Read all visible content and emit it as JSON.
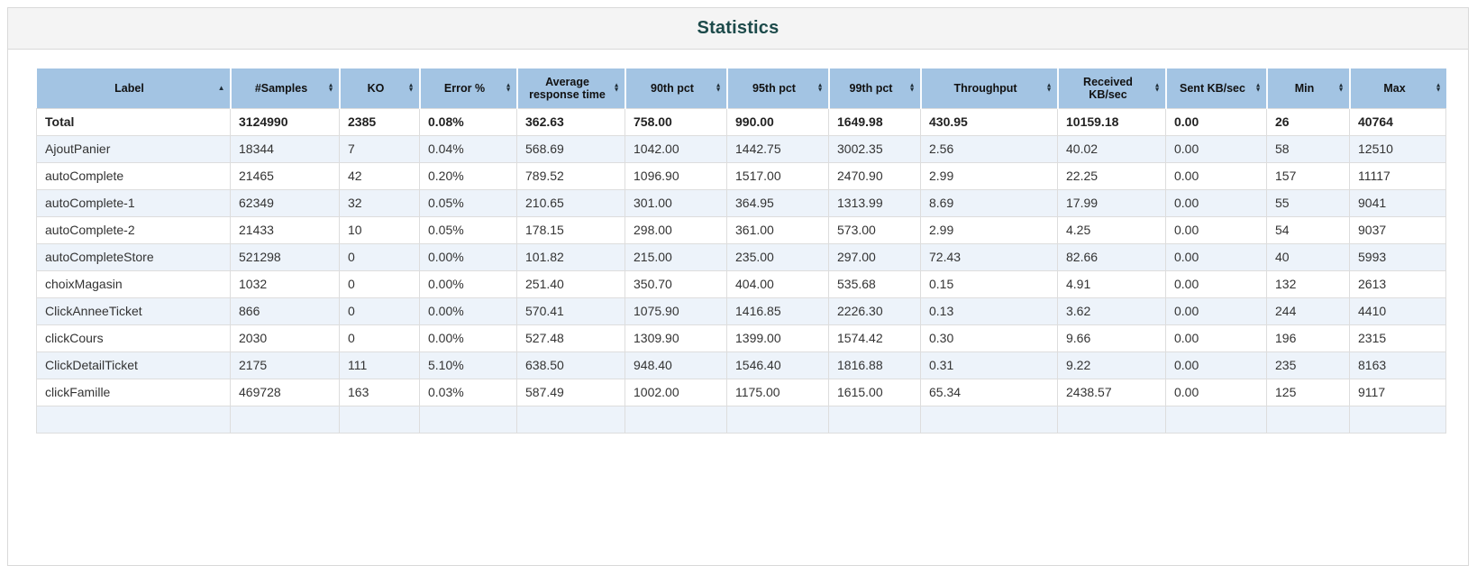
{
  "page": {
    "title": "Statistics"
  },
  "colors": {
    "header_bg": "#a3c4e3",
    "row_alt_bg": "#edf3fa",
    "title_color": "#1c4a4a",
    "panel_heading_bg": "#f4f4f4",
    "panel_border": "#d9d9d9",
    "cell_border": "#dddddd"
  },
  "table": {
    "columns": [
      {
        "id": "label",
        "label": "Label",
        "sort": "asc"
      },
      {
        "id": "samples",
        "label": "#Samples",
        "sort": "both"
      },
      {
        "id": "ko",
        "label": "KO",
        "sort": "both"
      },
      {
        "id": "error-pct",
        "label": "Error %",
        "sort": "both"
      },
      {
        "id": "average-response-time",
        "label": "Average response time",
        "sort": "both"
      },
      {
        "id": "90th-pct",
        "label": "90th pct",
        "sort": "both"
      },
      {
        "id": "95th-pct",
        "label": "95th pct",
        "sort": "both"
      },
      {
        "id": "99th-pct",
        "label": "99th pct",
        "sort": "both"
      },
      {
        "id": "throughput",
        "label": "Throughput",
        "sort": "both"
      },
      {
        "id": "received-kb-sec",
        "label": "Received KB/sec",
        "sort": "both"
      },
      {
        "id": "sent-kb-sec",
        "label": "Sent KB/sec",
        "sort": "both"
      },
      {
        "id": "min",
        "label": "Min",
        "sort": "both"
      },
      {
        "id": "max",
        "label": "Max",
        "sort": "both"
      }
    ],
    "total_row": [
      "Total",
      "3124990",
      "2385",
      "0.08%",
      "362.63",
      "758.00",
      "990.00",
      "1649.98",
      "430.95",
      "10159.18",
      "0.00",
      "26",
      "40764"
    ],
    "rows": [
      [
        "AjoutPanier",
        "18344",
        "7",
        "0.04%",
        "568.69",
        "1042.00",
        "1442.75",
        "3002.35",
        "2.56",
        "40.02",
        "0.00",
        "58",
        "12510"
      ],
      [
        "autoComplete",
        "21465",
        "42",
        "0.20%",
        "789.52",
        "1096.90",
        "1517.00",
        "2470.90",
        "2.99",
        "22.25",
        "0.00",
        "157",
        "11117"
      ],
      [
        "autoComplete-1",
        "62349",
        "32",
        "0.05%",
        "210.65",
        "301.00",
        "364.95",
        "1313.99",
        "8.69",
        "17.99",
        "0.00",
        "55",
        "9041"
      ],
      [
        "autoComplete-2",
        "21433",
        "10",
        "0.05%",
        "178.15",
        "298.00",
        "361.00",
        "573.00",
        "2.99",
        "4.25",
        "0.00",
        "54",
        "9037"
      ],
      [
        "autoCompleteStore",
        "521298",
        "0",
        "0.00%",
        "101.82",
        "215.00",
        "235.00",
        "297.00",
        "72.43",
        "82.66",
        "0.00",
        "40",
        "5993"
      ],
      [
        "choixMagasin",
        "1032",
        "0",
        "0.00%",
        "251.40",
        "350.70",
        "404.00",
        "535.68",
        "0.15",
        "4.91",
        "0.00",
        "132",
        "2613"
      ],
      [
        "ClickAnneeTicket",
        "866",
        "0",
        "0.00%",
        "570.41",
        "1075.90",
        "1416.85",
        "2226.30",
        "0.13",
        "3.62",
        "0.00",
        "244",
        "4410"
      ],
      [
        "clickCours",
        "2030",
        "0",
        "0.00%",
        "527.48",
        "1309.90",
        "1399.00",
        "1574.42",
        "0.30",
        "9.66",
        "0.00",
        "196",
        "2315"
      ],
      [
        "ClickDetailTicket",
        "2175",
        "111",
        "5.10%",
        "638.50",
        "948.40",
        "1546.40",
        "1816.88",
        "0.31",
        "9.22",
        "0.00",
        "235",
        "8163"
      ],
      [
        "clickFamille",
        "469728",
        "163",
        "0.03%",
        "587.49",
        "1002.00",
        "1175.00",
        "1615.00",
        "65.34",
        "2438.57",
        "0.00",
        "125",
        "9117"
      ]
    ]
  }
}
